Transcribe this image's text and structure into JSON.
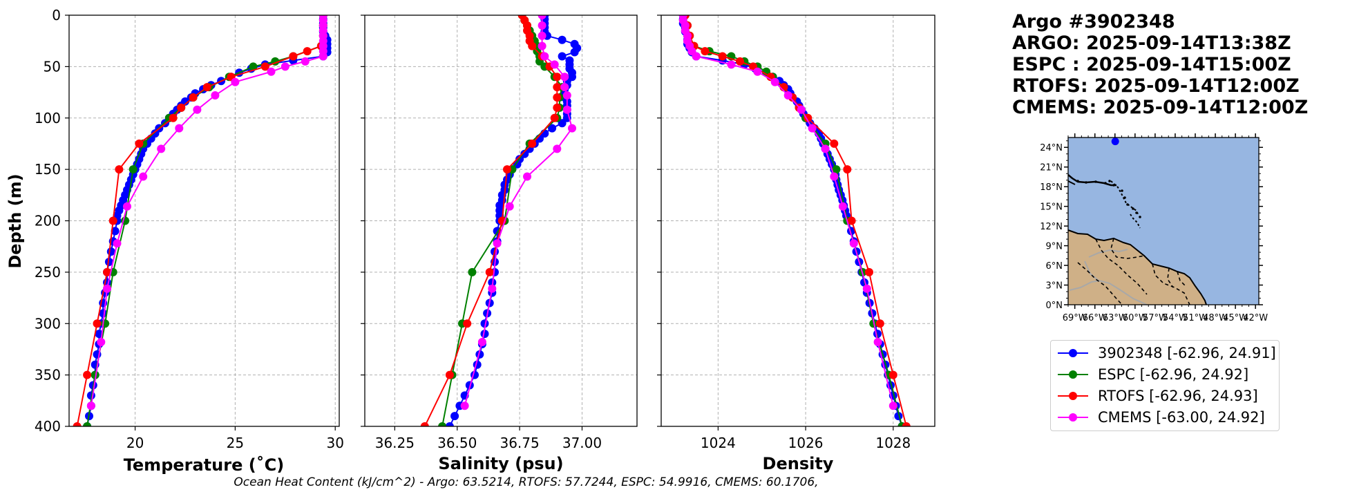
{
  "chart_data": {
    "type": "line",
    "title": "Argo #3902348",
    "times": [
      "ARGO: 2025-09-14T13:38Z",
      "ESPC : 2025-09-14T15:00Z",
      "RTOFS: 2025-09-14T12:00Z",
      "CMEMS: 2025-09-14T12:00Z"
    ],
    "ylabel": "Depth (m)",
    "ylim": [
      400,
      0
    ],
    "yticks": [
      0,
      50,
      100,
      150,
      200,
      250,
      300,
      350,
      400
    ],
    "colors": {
      "argo": "#0000ff",
      "espc": "#008000",
      "rtofs": "#ff0000",
      "cmems": "#ff00ff"
    },
    "panels": [
      {
        "name": "temperature",
        "xlabel": "Temperature (˚C)",
        "xlim": [
          16.7,
          30.2
        ],
        "xticks": [
          20,
          25,
          30
        ],
        "xticklabels": [
          "20",
          "25",
          "30"
        ],
        "series": [
          {
            "name": "3902348 [-62.96, 24.91]",
            "key": "argo",
            "depth": [
              0,
              4,
              8,
              12,
              16,
              20,
              24,
              28,
              32,
              36,
              40,
              44,
              48,
              52,
              56,
              60,
              64,
              68,
              72,
              76,
              80,
              84,
              88,
              92,
              96,
              100,
              105,
              110,
              115,
              120,
              125,
              130,
              135,
              140,
              145,
              150,
              155,
              160,
              165,
              170,
              175,
              180,
              185,
              190,
              195,
              200,
              210,
              220,
              230,
              240,
              250,
              260,
              270,
              280,
              290,
              300,
              310,
              320,
              330,
              340,
              350,
              360,
              370,
              380,
              390,
              400
            ],
            "values": [
              29.4,
              29.4,
              29.4,
              29.4,
              29.4,
              29.5,
              29.6,
              29.6,
              29.6,
              29.6,
              29.4,
              27.9,
              26.5,
              25.8,
              25.2,
              24.8,
              24.3,
              23.8,
              23.4,
              23.0,
              22.8,
              22.5,
              22.3,
              22.1,
              21.9,
              21.7,
              21.5,
              21.2,
              21.0,
              20.8,
              20.6,
              20.4,
              20.3,
              20.2,
              20.1,
              20.0,
              19.9,
              19.8,
              19.7,
              19.6,
              19.5,
              19.4,
              19.3,
              19.2,
              19.1,
              19.1,
              19.0,
              18.9,
              18.8,
              18.7,
              18.6,
              18.6,
              18.5,
              18.4,
              18.4,
              18.3,
              18.2,
              18.2,
              18.1,
              18.0,
              18.0,
              17.9,
              17.8,
              17.8,
              17.7,
              17.6
            ]
          },
          {
            "name": "ESPC [-62.96, 24.92]",
            "key": "espc",
            "depth": [
              0,
              10,
              20,
              30,
              40,
              45,
              50,
              60,
              70,
              80,
              90,
              100,
              125,
              150,
              200,
              250,
              300,
              350,
              400
            ],
            "values": [
              29.4,
              29.4,
              29.4,
              29.3,
              27.9,
              27.0,
              25.9,
              24.7,
              23.7,
              22.9,
              22.3,
              21.7,
              20.4,
              19.9,
              19.5,
              18.9,
              18.5,
              18.0,
              17.6
            ]
          },
          {
            "name": "RTOFS [-62.96, 24.93]",
            "key": "rtofs",
            "depth": [
              0,
              10,
              20,
              30,
              35,
              40,
              50,
              60,
              70,
              80,
              90,
              100,
              125,
              150,
              200,
              250,
              300,
              350,
              400
            ],
            "values": [
              29.4,
              29.4,
              29.4,
              29.3,
              28.6,
              27.9,
              26.5,
              24.8,
              23.6,
              22.9,
              22.3,
              21.9,
              20.2,
              19.2,
              18.9,
              18.6,
              18.1,
              17.6,
              17.1
            ]
          },
          {
            "name": "CMEMS [-63.00, 24.92]",
            "key": "cmems",
            "depth": [
              0,
              5,
              10,
              15,
              20,
              25,
              30,
              35,
              40,
              45,
              50,
              55,
              65,
              78,
              92,
              110,
              130,
              157,
              186,
              222,
              266,
              318,
              380
            ],
            "values": [
              29.4,
              29.4,
              29.4,
              29.4,
              29.4,
              29.4,
              29.4,
              29.4,
              29.4,
              28.5,
              27.5,
              26.8,
              25.0,
              24.0,
              23.1,
              22.2,
              21.3,
              20.4,
              19.6,
              19.1,
              18.6,
              18.3,
              17.8
            ]
          }
        ]
      },
      {
        "name": "salinity",
        "xlabel": "Salinity (psu)",
        "xlim": [
          36.13,
          37.22
        ],
        "xticks": [
          36.25,
          36.5,
          36.75,
          37.0
        ],
        "xticklabels": [
          "36.25",
          "36.50",
          "36.75",
          "37.00"
        ],
        "series": [
          {
            "name": "3902348 [-62.96, 24.91]",
            "key": "argo",
            "depth": [
              0,
              4,
              8,
              12,
              16,
              20,
              24,
              28,
              32,
              36,
              40,
              44,
              48,
              52,
              56,
              60,
              64,
              68,
              72,
              76,
              80,
              84,
              88,
              92,
              96,
              100,
              105,
              110,
              115,
              120,
              125,
              130,
              135,
              140,
              145,
              150,
              155,
              160,
              165,
              170,
              175,
              180,
              185,
              190,
              195,
              200,
              210,
              220,
              230,
              240,
              250,
              260,
              270,
              280,
              290,
              300,
              310,
              320,
              330,
              340,
              350,
              360,
              370,
              380,
              390,
              400
            ],
            "values": [
              36.85,
              36.85,
              36.85,
              36.85,
              36.85,
              36.86,
              36.92,
              36.97,
              36.98,
              36.97,
              36.92,
              36.95,
              36.95,
              36.95,
              36.96,
              36.96,
              36.94,
              36.94,
              36.93,
              36.93,
              36.93,
              36.94,
              36.94,
              36.94,
              36.94,
              36.94,
              36.92,
              36.88,
              36.85,
              36.83,
              36.81,
              36.79,
              36.77,
              36.75,
              36.74,
              36.72,
              36.71,
              36.7,
              36.69,
              36.69,
              36.68,
              36.68,
              36.67,
              36.67,
              36.67,
              36.67,
              36.66,
              36.66,
              36.65,
              36.65,
              36.65,
              36.64,
              36.64,
              36.63,
              36.62,
              36.61,
              36.61,
              36.6,
              36.59,
              36.58,
              36.57,
              36.55,
              36.53,
              36.51,
              36.49,
              36.47
            ]
          },
          {
            "name": "ESPC [-62.96, 24.92]",
            "key": "espc",
            "depth": [
              0,
              5,
              10,
              15,
              20,
              25,
              30,
              35,
              40,
              45,
              50,
              60,
              70,
              80,
              90,
              100,
              125,
              150,
              200,
              250,
              300,
              350,
              400
            ],
            "values": [
              36.76,
              36.77,
              36.78,
              36.79,
              36.8,
              36.81,
              36.82,
              36.82,
              36.83,
              36.83,
              36.85,
              36.89,
              36.92,
              36.91,
              36.91,
              36.9,
              36.79,
              36.72,
              36.69,
              36.56,
              36.52,
              36.48,
              36.44
            ]
          },
          {
            "name": "RTOFS [-62.96, 24.93]",
            "key": "rtofs",
            "depth": [
              0,
              5,
              10,
              15,
              20,
              25,
              30,
              40,
              50,
              60,
              70,
              80,
              90,
              100,
              125,
              150,
              200,
              250,
              300,
              350,
              400
            ],
            "values": [
              36.76,
              36.77,
              36.78,
              36.78,
              36.79,
              36.79,
              36.8,
              36.84,
              36.87,
              36.9,
              36.9,
              36.9,
              36.9,
              36.89,
              36.8,
              36.7,
              36.68,
              36.63,
              36.54,
              36.47,
              36.37
            ]
          },
          {
            "name": "CMEMS [-63.00, 24.92]",
            "key": "cmems",
            "depth": [
              0,
              10,
              20,
              30,
              40,
              48,
              60,
              70,
              78,
              92,
              110,
              130,
              157,
              186,
              222,
              266,
              318,
              380
            ],
            "values": [
              36.84,
              36.84,
              36.84,
              36.84,
              36.85,
              36.89,
              36.93,
              36.93,
              36.94,
              36.94,
              36.96,
              36.9,
              36.78,
              36.71,
              36.66,
              36.64,
              36.6,
              36.53
            ]
          }
        ]
      },
      {
        "name": "density",
        "xlabel": "Density",
        "xlim": [
          1022.7,
          1028.95
        ],
        "xticks": [
          1024,
          1026,
          1028
        ],
        "xticklabels": [
          "1024",
          "1026",
          "1028"
        ],
        "series": [
          {
            "name": "3902348 [-62.96, 24.91]",
            "key": "argo",
            "depth": [
              0,
              4,
              8,
              12,
              16,
              20,
              24,
              28,
              32,
              36,
              40,
              44,
              48,
              52,
              56,
              60,
              64,
              68,
              72,
              76,
              80,
              84,
              88,
              92,
              96,
              100,
              105,
              110,
              115,
              120,
              125,
              130,
              135,
              140,
              145,
              150,
              155,
              160,
              165,
              170,
              175,
              180,
              185,
              190,
              195,
              200,
              210,
              220,
              230,
              240,
              250,
              260,
              270,
              280,
              290,
              300,
              310,
              320,
              330,
              340,
              350,
              360,
              370,
              380,
              390,
              400
            ],
            "values": [
              1023.2,
              1023.2,
              1023.2,
              1023.25,
              1023.25,
              1023.3,
              1023.3,
              1023.3,
              1023.35,
              1023.4,
              1023.5,
              1024.1,
              1024.6,
              1024.85,
              1025.1,
              1025.25,
              1025.4,
              1025.5,
              1025.6,
              1025.65,
              1025.7,
              1025.8,
              1025.85,
              1025.9,
              1025.95,
              1026.0,
              1026.1,
              1026.2,
              1026.3,
              1026.35,
              1026.4,
              1026.45,
              1026.5,
              1026.55,
              1026.6,
              1026.65,
              1026.68,
              1026.7,
              1026.73,
              1026.76,
              1026.8,
              1026.84,
              1026.87,
              1026.9,
              1026.93,
              1026.97,
              1027.04,
              1027.1,
              1027.16,
              1027.22,
              1027.28,
              1027.34,
              1027.4,
              1027.46,
              1027.52,
              1027.58,
              1027.64,
              1027.7,
              1027.76,
              1027.82,
              1027.88,
              1027.94,
              1028.0,
              1028.06,
              1028.12,
              1028.2
            ]
          },
          {
            "name": "ESPC [-62.96, 24.92]",
            "key": "espc",
            "depth": [
              0,
              10,
              20,
              30,
              35,
              40,
              45,
              50,
              55,
              60,
              70,
              80,
              90,
              100,
              125,
              150,
              200,
              250,
              300,
              350,
              400
            ],
            "values": [
              1023.25,
              1023.3,
              1023.35,
              1023.45,
              1023.8,
              1024.3,
              1024.6,
              1024.9,
              1025.1,
              1025.25,
              1025.5,
              1025.7,
              1025.85,
              1026.0,
              1026.45,
              1026.7,
              1026.95,
              1027.3,
              1027.55,
              1027.9,
              1028.2
            ]
          },
          {
            "name": "RTOFS [-62.96, 24.93]",
            "key": "rtofs",
            "depth": [
              0,
              10,
              20,
              30,
              35,
              40,
              45,
              50,
              60,
              70,
              80,
              90,
              100,
              125,
              150,
              200,
              250,
              300,
              350,
              400
            ],
            "values": [
              1023.25,
              1023.3,
              1023.35,
              1023.45,
              1023.7,
              1024.1,
              1024.5,
              1024.8,
              1025.2,
              1025.5,
              1025.7,
              1025.85,
              1026.05,
              1026.65,
              1026.95,
              1027.05,
              1027.45,
              1027.7,
              1028.0,
              1028.3
            ]
          },
          {
            "name": "CMEMS [-63.00, 24.92]",
            "key": "cmems",
            "depth": [
              0,
              5,
              10,
              15,
              20,
              25,
              30,
              35,
              40,
              48,
              55,
              65,
              78,
              92,
              110,
              130,
              157,
              186,
              222,
              266,
              318,
              380
            ],
            "values": [
              1023.2,
              1023.2,
              1023.25,
              1023.25,
              1023.3,
              1023.3,
              1023.35,
              1023.4,
              1023.5,
              1024.3,
              1024.9,
              1025.3,
              1025.6,
              1025.9,
              1026.15,
              1026.45,
              1026.65,
              1026.85,
              1027.1,
              1027.4,
              1027.65,
              1028.0
            ]
          }
        ]
      }
    ],
    "inset_map": {
      "lat_ticks": [
        "24°N",
        "21°N",
        "18°N",
        "15°N",
        "12°N",
        "9°N",
        "6°N",
        "3°N",
        "0°N"
      ],
      "lon_ticks": [
        "69°W",
        "66°W",
        "63°W",
        "60°W",
        "57°W",
        "54°W",
        "51°W",
        "48°W",
        "45°W",
        "42°W"
      ],
      "lat_range": [
        0,
        25.5
      ],
      "lon_range": [
        -70,
        -41.5
      ],
      "float_position": {
        "lon": -62.96,
        "lat": 24.91
      },
      "ocean_color": "#97b6e1",
      "land_color": "#cfb087"
    },
    "ocean_heat_content": "Ocean Heat Content (kJ/cm^2) - Argo: 63.5214,  RTOFS: 57.7244,  ESPC: 54.9916,  CMEMS: 60.1706,"
  }
}
